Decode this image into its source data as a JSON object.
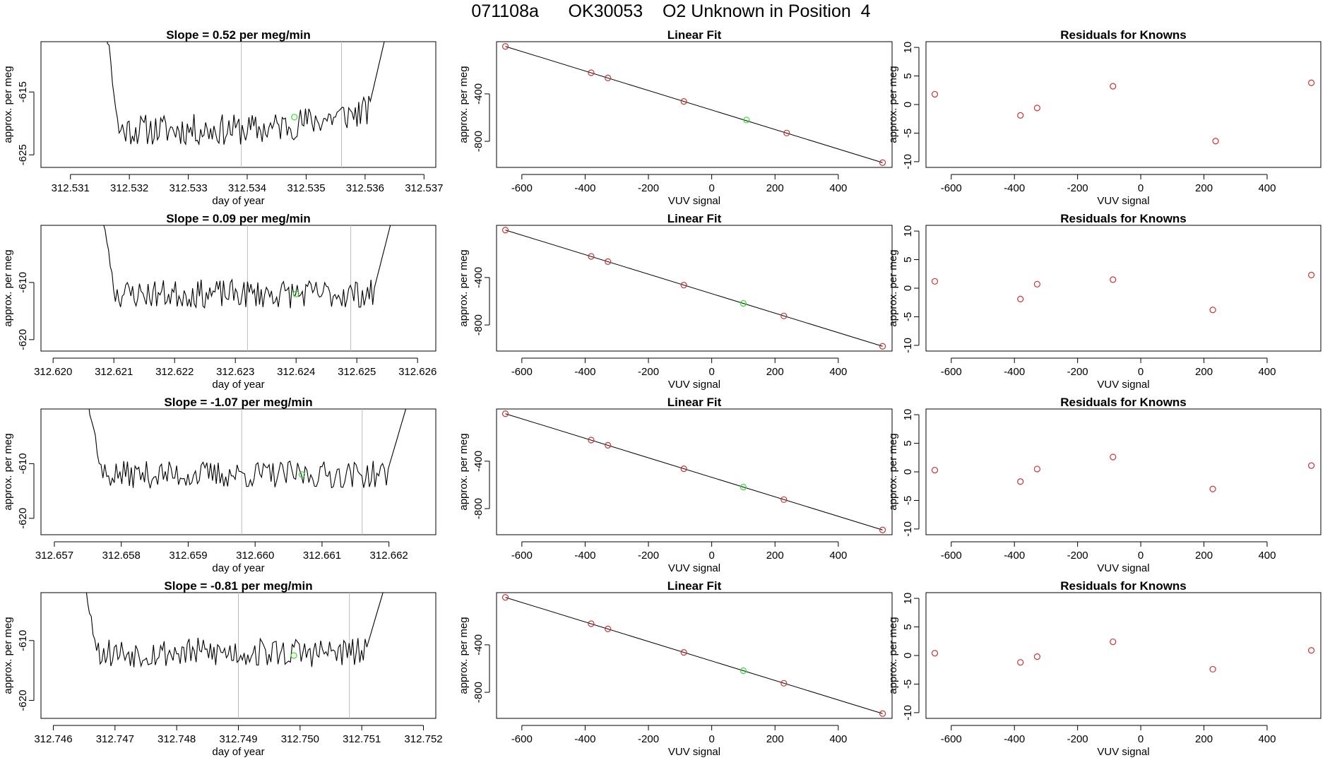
{
  "title": "071108a      OK30053    O2 Unknown in Position  4",
  "colors": {
    "line": "#000000",
    "known": "#cc3333",
    "unknown": "#33dd33",
    "vline": "#bbbbbb"
  },
  "chart_data": [
    {
      "type": "line",
      "row": 0,
      "title": "Slope =  0.52  per meg/min",
      "xlabel": "day of year",
      "ylabel": "approx. per meg",
      "xlim": [
        312.5305,
        312.5372
      ],
      "ylim": [
        -627,
        -607
      ],
      "xticks": [
        312.531,
        312.532,
        312.533,
        312.534,
        312.535,
        312.536,
        312.537
      ],
      "xtick_labels": [
        "312.531",
        "312.532",
        "312.533",
        "312.534",
        "312.535",
        "312.536",
        "312.537"
      ],
      "yticks": [
        -615,
        -625
      ],
      "ytick_labels": [
        "-615",
        "-625"
      ],
      "vlines": [
        312.5339,
        312.5356
      ],
      "signal": {
        "x_start": 312.5316,
        "x_end": 312.5364,
        "base": -621,
        "edge_high": -604,
        "noise": 2.5,
        "late_rise": 3.5,
        "seed": 11
      },
      "unknown_point": {
        "x": 312.5348,
        "y": -619
      }
    },
    {
      "type": "scatter_fit",
      "row": 0,
      "title": "Linear Fit",
      "xlabel": "VUV signal",
      "ylabel": "approx. per meg",
      "xlim": [
        -680,
        570
      ],
      "ylim": [
        -1020,
        40
      ],
      "xticks": [
        -600,
        -400,
        -200,
        0,
        200,
        400
      ],
      "xtick_labels": [
        "-600",
        "-400",
        "-200",
        "0",
        "200",
        "400"
      ],
      "yticks": [
        -400,
        -800
      ],
      "ytick_labels": [
        "-400",
        "-800"
      ],
      "fit_line": [
        [
          -652,
          0
        ],
        [
          540,
          -980
        ]
      ],
      "known_points": [
        [
          -652,
          0
        ],
        [
          -381,
          -222
        ],
        [
          -328,
          -266
        ],
        [
          -88,
          -464
        ],
        [
          237,
          -730
        ],
        [
          540,
          -980
        ]
      ],
      "unknown_point": [
        110,
        -620
      ]
    },
    {
      "type": "scatter",
      "row": 0,
      "title": "Residuals for Knowns",
      "xlabel": "VUV signal",
      "ylabel": "approx. per meg",
      "xlim": [
        -680,
        570
      ],
      "ylim": [
        -11,
        11
      ],
      "xticks": [
        -600,
        -400,
        -200,
        0,
        200,
        400
      ],
      "xtick_labels": [
        "-600",
        "-400",
        "-200",
        "0",
        "200",
        "400"
      ],
      "yticks": [
        10,
        5,
        0,
        -5,
        -10
      ],
      "ytick_labels": [
        "10",
        "5",
        "0",
        "-5",
        "-10"
      ],
      "points": [
        [
          -652,
          1.8
        ],
        [
          -381,
          -1.9
        ],
        [
          -328,
          -0.6
        ],
        [
          -88,
          3.2
        ],
        [
          237,
          -6.4
        ],
        [
          540,
          3.8
        ]
      ]
    },
    {
      "type": "line",
      "row": 1,
      "title": "Slope =  0.09  per meg/min",
      "xlabel": "day of year",
      "ylabel": "approx. per meg",
      "xlim": [
        312.6198,
        312.6263
      ],
      "ylim": [
        -622,
        -600
      ],
      "xticks": [
        312.62,
        312.621,
        312.622,
        312.623,
        312.624,
        312.625,
        312.626
      ],
      "xtick_labels": [
        "312.620",
        "312.621",
        "312.622",
        "312.623",
        "312.624",
        "312.625",
        "312.626"
      ],
      "yticks": [
        -610,
        -620
      ],
      "ytick_labels": [
        "-610",
        "-620"
      ],
      "vlines": [
        312.6232,
        312.6249
      ],
      "signal": {
        "x_start": 312.6208,
        "x_end": 312.6256,
        "base": -612,
        "edge_high": -598,
        "noise": 2.5,
        "late_rise": 0,
        "seed": 23
      },
      "unknown_point": {
        "x": 312.624,
        "y": -612
      }
    },
    {
      "type": "scatter_fit",
      "row": 1,
      "title": "Linear Fit",
      "xlabel": "VUV signal",
      "ylabel": "approx. per meg",
      "xlim": [
        -680,
        570
      ],
      "ylim": [
        -1020,
        40
      ],
      "xticks": [
        -600,
        -400,
        -200,
        0,
        200,
        400
      ],
      "xtick_labels": [
        "-600",
        "-400",
        "-200",
        "0",
        "200",
        "400"
      ],
      "yticks": [
        -400,
        -800
      ],
      "ytick_labels": [
        "-400",
        "-800"
      ],
      "fit_line": [
        [
          -652,
          0
        ],
        [
          540,
          -980
        ]
      ],
      "known_points": [
        [
          -652,
          0
        ],
        [
          -381,
          -222
        ],
        [
          -328,
          -266
        ],
        [
          -88,
          -464
        ],
        [
          228,
          -724
        ],
        [
          540,
          -980
        ]
      ],
      "unknown_point": [
        100,
        -618
      ]
    },
    {
      "type": "scatter",
      "row": 1,
      "title": "Residuals for Knowns",
      "xlabel": "VUV signal",
      "ylabel": "approx. per meg",
      "xlim": [
        -680,
        570
      ],
      "ylim": [
        -11,
        11
      ],
      "xticks": [
        -600,
        -400,
        -200,
        0,
        200,
        400
      ],
      "xtick_labels": [
        "-600",
        "-400",
        "-200",
        "0",
        "200",
        "400"
      ],
      "yticks": [
        10,
        5,
        0,
        -5,
        -10
      ],
      "ytick_labels": [
        "10",
        "5",
        "0",
        "-5",
        "-10"
      ],
      "points": [
        [
          -652,
          1.2
        ],
        [
          -381,
          -1.9
        ],
        [
          -328,
          0.7
        ],
        [
          -88,
          1.5
        ],
        [
          228,
          -3.8
        ],
        [
          540,
          2.3
        ]
      ]
    },
    {
      "type": "line",
      "row": 2,
      "title": "Slope =  -1.07  per meg/min",
      "xlabel": "day of year",
      "ylabel": "approx. per meg",
      "xlim": [
        312.6568,
        312.6627
      ],
      "ylim": [
        -623,
        -600
      ],
      "xticks": [
        312.657,
        312.658,
        312.659,
        312.66,
        312.661,
        312.662
      ],
      "xtick_labels": [
        "312.657",
        "312.658",
        "312.659",
        "312.660",
        "312.661",
        "312.662"
      ],
      "yticks": [
        -610,
        -620
      ],
      "ytick_labels": [
        "-610",
        "-620"
      ],
      "vlines": [
        312.6598,
        312.6616
      ],
      "signal": {
        "x_start": 312.6575,
        "x_end": 312.6623,
        "base": -612,
        "edge_high": -598,
        "noise": 2.5,
        "late_rise": 0,
        "seed": 37
      },
      "unknown_point": {
        "x": 312.6607,
        "y": -612
      }
    },
    {
      "type": "scatter_fit",
      "row": 2,
      "title": "Linear Fit",
      "xlabel": "VUV signal",
      "ylabel": "approx. per meg",
      "xlim": [
        -680,
        570
      ],
      "ylim": [
        -1020,
        40
      ],
      "xticks": [
        -600,
        -400,
        -200,
        0,
        200,
        400
      ],
      "xtick_labels": [
        "-600",
        "-400",
        "-200",
        "0",
        "200",
        "400"
      ],
      "yticks": [
        -400,
        -800
      ],
      "ytick_labels": [
        "-400",
        "-800"
      ],
      "fit_line": [
        [
          -652,
          0
        ],
        [
          540,
          -980
        ]
      ],
      "known_points": [
        [
          -652,
          0
        ],
        [
          -381,
          -222
        ],
        [
          -328,
          -266
        ],
        [
          -88,
          -464
        ],
        [
          228,
          -724
        ],
        [
          540,
          -980
        ]
      ],
      "unknown_point": [
        100,
        -618
      ]
    },
    {
      "type": "scatter",
      "row": 2,
      "title": "Residuals for Knowns",
      "xlabel": "VUV signal",
      "ylabel": "approx. per meg",
      "xlim": [
        -680,
        570
      ],
      "ylim": [
        -11,
        11
      ],
      "xticks": [
        -600,
        -400,
        -200,
        0,
        200,
        400
      ],
      "xtick_labels": [
        "-600",
        "-400",
        "-200",
        "0",
        "200",
        "400"
      ],
      "yticks": [
        10,
        5,
        0,
        -5,
        -10
      ],
      "ytick_labels": [
        "10",
        "5",
        "0",
        "-5",
        "-10"
      ],
      "points": [
        [
          -652,
          0.3
        ],
        [
          -381,
          -1.7
        ],
        [
          -328,
          0.5
        ],
        [
          -88,
          2.6
        ],
        [
          228,
          -3.0
        ],
        [
          540,
          1.1
        ]
      ]
    },
    {
      "type": "line",
      "row": 3,
      "title": "Slope =  -0.81  per meg/min",
      "xlabel": "day of year",
      "ylabel": "approx. per meg",
      "xlim": [
        312.7458,
        312.7522
      ],
      "ylim": [
        -623,
        -602
      ],
      "xticks": [
        312.746,
        312.747,
        312.748,
        312.749,
        312.75,
        312.751,
        312.752
      ],
      "xtick_labels": [
        "312.746",
        "312.747",
        "312.748",
        "312.749",
        "312.750",
        "312.751",
        "312.752"
      ],
      "yticks": [
        -610,
        -620
      ],
      "ytick_labels": [
        "-610",
        "-620"
      ],
      "vlines": [
        312.749,
        312.7508
      ],
      "signal": {
        "x_start": 312.7465,
        "x_end": 312.7514,
        "base": -612,
        "edge_high": -600,
        "noise": 2.5,
        "late_rise": 0,
        "seed": 53
      },
      "unknown_point": {
        "x": 312.7499,
        "y": -612.5
      }
    },
    {
      "type": "scatter_fit",
      "row": 3,
      "title": "Linear Fit",
      "xlabel": "VUV signal",
      "ylabel": "approx. per meg",
      "xlim": [
        -680,
        570
      ],
      "ylim": [
        -1020,
        40
      ],
      "xticks": [
        -600,
        -400,
        -200,
        0,
        200,
        400
      ],
      "xtick_labels": [
        "-600",
        "-400",
        "-200",
        "0",
        "200",
        "400"
      ],
      "yticks": [
        -400,
        -800
      ],
      "ytick_labels": [
        "-400",
        "-800"
      ],
      "fit_line": [
        [
          -652,
          0
        ],
        [
          540,
          -980
        ]
      ],
      "known_points": [
        [
          -652,
          0
        ],
        [
          -381,
          -222
        ],
        [
          -328,
          -266
        ],
        [
          -88,
          -464
        ],
        [
          228,
          -724
        ],
        [
          540,
          -980
        ]
      ],
      "unknown_point": [
        100,
        -618
      ]
    },
    {
      "type": "scatter",
      "row": 3,
      "title": "Residuals for Knowns",
      "xlabel": "VUV signal",
      "ylabel": "approx. per meg",
      "xlim": [
        -680,
        570
      ],
      "ylim": [
        -11,
        11
      ],
      "xticks": [
        -600,
        -400,
        -200,
        0,
        200,
        400
      ],
      "xtick_labels": [
        "-600",
        "-400",
        "-200",
        "0",
        "200",
        "400"
      ],
      "yticks": [
        10,
        5,
        0,
        -5,
        -10
      ],
      "ytick_labels": [
        "10",
        "5",
        "0",
        "-5",
        "-10"
      ],
      "points": [
        [
          -652,
          0.4
        ],
        [
          -381,
          -1.2
        ],
        [
          -328,
          -0.2
        ],
        [
          -88,
          2.4
        ],
        [
          228,
          -2.4
        ],
        [
          540,
          0.9
        ]
      ]
    }
  ]
}
